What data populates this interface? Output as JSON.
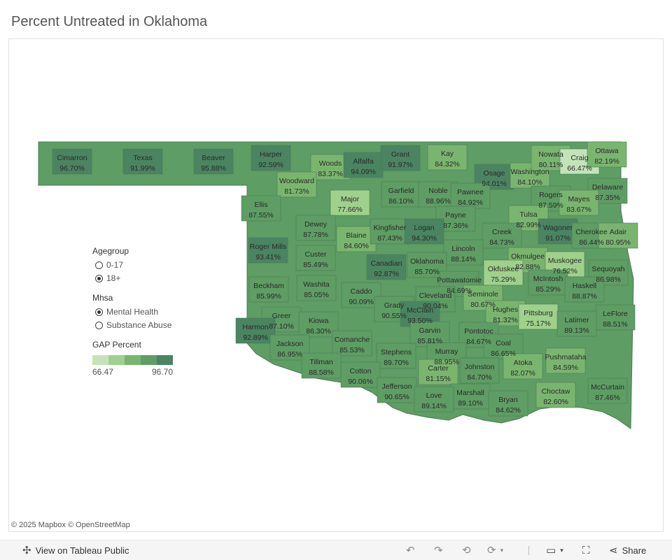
{
  "title": "Percent Untreated in Oklahoma",
  "attribution": "© 2025 Mapbox  © OpenStreetMap",
  "legend": {
    "agegroup": {
      "label": "Agegroup",
      "options": [
        "0-17",
        "18+"
      ],
      "selected": "18+"
    },
    "mhsa": {
      "label": "Mhsa",
      "options": [
        "Mental Health",
        "Substance Abuse"
      ],
      "selected": "Mental Health"
    },
    "gap": {
      "label": "GAP Percent",
      "min": "66.47",
      "max": "96.70",
      "colors": [
        "#c3e4b9",
        "#9fd18c",
        "#7ab56f",
        "#5e9d64",
        "#4a8461"
      ]
    }
  },
  "toolbar": {
    "view_label": "View on Tableau Public",
    "share_label": "Share"
  },
  "counties": [
    {
      "name": "Cimarron",
      "value": "96.70%"
    },
    {
      "name": "Texas",
      "value": "91.99%"
    },
    {
      "name": "Beaver",
      "value": "95.88%"
    },
    {
      "name": "Harper",
      "value": "92.59%"
    },
    {
      "name": "Woods",
      "value": "83.37%"
    },
    {
      "name": "Alfalfa",
      "value": "94.09%"
    },
    {
      "name": "Grant",
      "value": "91.97%"
    },
    {
      "name": "Kay",
      "value": "84.32%"
    },
    {
      "name": "Osage",
      "value": "94.01%"
    },
    {
      "name": "Washington",
      "value": "84.10%"
    },
    {
      "name": "Nowata",
      "value": "80.11%"
    },
    {
      "name": "Craig",
      "value": "66.47%"
    },
    {
      "name": "Ottawa",
      "value": "82.19%"
    },
    {
      "name": "Delaware",
      "value": "87.35%"
    },
    {
      "name": "Woodward",
      "value": "81.73%"
    },
    {
      "name": "Major",
      "value": "77.66%"
    },
    {
      "name": "Garfield",
      "value": "86.10%"
    },
    {
      "name": "Noble",
      "value": "88.96%"
    },
    {
      "name": "Pawnee",
      "value": "84.92%"
    },
    {
      "name": "Rogers",
      "value": "87.59%"
    },
    {
      "name": "Mayes",
      "value": "83.67%"
    },
    {
      "name": "Ellis",
      "value": "87.55%"
    },
    {
      "name": "Payne",
      "value": "87.36%"
    },
    {
      "name": "Tulsa",
      "value": "82.99%"
    },
    {
      "name": "Dewey",
      "value": "87.78%"
    },
    {
      "name": "Blaine",
      "value": "84.60%"
    },
    {
      "name": "Kingfisher",
      "value": "87.43%"
    },
    {
      "name": "Logan",
      "value": "94.30%"
    },
    {
      "name": "Creek",
      "value": "84.73%"
    },
    {
      "name": "Wagoner",
      "value": "91.07%"
    },
    {
      "name": "Cherokee",
      "value": "86.44%"
    },
    {
      "name": "Adair",
      "value": "80.95%"
    },
    {
      "name": "Roger Mills",
      "value": "93.41%"
    },
    {
      "name": "Lincoln",
      "value": "88.14%"
    },
    {
      "name": "Okmulgee",
      "value": "82.88%"
    },
    {
      "name": "Muskogee",
      "value": "76.52%"
    },
    {
      "name": "Custer",
      "value": "85.49%"
    },
    {
      "name": "Canadian",
      "value": "92.87%"
    },
    {
      "name": "Oklahoma",
      "value": "85.70%"
    },
    {
      "name": "Okfuskee",
      "value": "75.29%"
    },
    {
      "name": "Sequoyah",
      "value": "86.98%"
    },
    {
      "name": "McIntosh",
      "value": "85.29%"
    },
    {
      "name": "Beckham",
      "value": "85.99%"
    },
    {
      "name": "Washita",
      "value": "85.05%"
    },
    {
      "name": "Caddo",
      "value": "90.09%"
    },
    {
      "name": "Pottawatomie",
      "value": "84.69%"
    },
    {
      "name": "Haskell",
      "value": "88.87%"
    },
    {
      "name": "Seminole",
      "value": "80.67%"
    },
    {
      "name": "Cleveland",
      "value": "90.04%"
    },
    {
      "name": "Grady",
      "value": "90.55%"
    },
    {
      "name": "McClain",
      "value": "93.50%"
    },
    {
      "name": "Hughes",
      "value": "81.32%"
    },
    {
      "name": "Pittsburg",
      "value": "75.17%"
    },
    {
      "name": "LeFlore",
      "value": "88.51%"
    },
    {
      "name": "Greer",
      "value": "87.10%"
    },
    {
      "name": "Harmon",
      "value": "92.89%"
    },
    {
      "name": "Kiowa",
      "value": "86.30%"
    },
    {
      "name": "Latimer",
      "value": "89.13%"
    },
    {
      "name": "Jackson",
      "value": "86.95%"
    },
    {
      "name": "Comanche",
      "value": "85.53%"
    },
    {
      "name": "Garvin",
      "value": "85.81%"
    },
    {
      "name": "Pontotoc",
      "value": "84.67%"
    },
    {
      "name": "Coal",
      "value": "86.65%"
    },
    {
      "name": "Stephens",
      "value": "89.70%"
    },
    {
      "name": "Murray",
      "value": "88.95%"
    },
    {
      "name": "Pushmataha",
      "value": "84.59%"
    },
    {
      "name": "Tillman",
      "value": "88.58%"
    },
    {
      "name": "Atoka",
      "value": "82.07%"
    },
    {
      "name": "Carter",
      "value": "81.15%"
    },
    {
      "name": "Johnston",
      "value": "84.70%"
    },
    {
      "name": "Cotton",
      "value": "90.06%"
    },
    {
      "name": "McCurtain",
      "value": "87.46%"
    },
    {
      "name": "Jefferson",
      "value": "90.65%"
    },
    {
      "name": "Choctaw",
      "value": "82.60%"
    },
    {
      "name": "Marshall",
      "value": "89.10%"
    },
    {
      "name": "Love",
      "value": "89.14%"
    },
    {
      "name": "Bryan",
      "value": "84.62%"
    }
  ]
}
